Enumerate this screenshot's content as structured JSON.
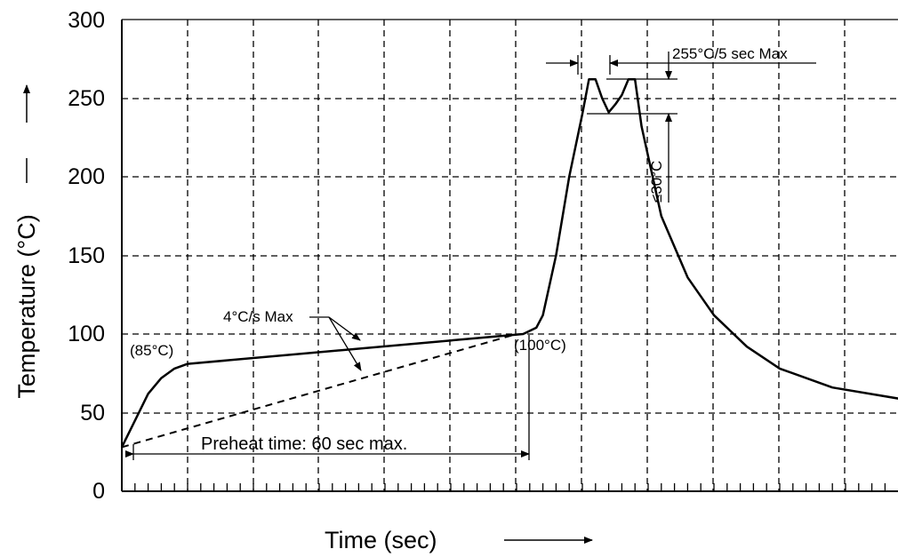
{
  "chart_data": {
    "type": "line",
    "xlabel": "Time (sec)",
    "ylabel": "Temperature (°C)",
    "ylim": [
      0,
      300
    ],
    "y_ticks": [
      "0",
      "50",
      "100",
      "150",
      "200",
      "250",
      "300"
    ],
    "x_tick_labels_shown": false,
    "grid": true,
    "series": [
      {
        "style": "solid",
        "points": [
          [
            0,
            28
          ],
          [
            2,
            45
          ],
          [
            4,
            62
          ],
          [
            6,
            72
          ],
          [
            8,
            78
          ],
          [
            10,
            81
          ],
          [
            61,
            100
          ],
          [
            63,
            104
          ],
          [
            64,
            112
          ],
          [
            66,
            150
          ],
          [
            68,
            200
          ],
          [
            70,
            240
          ],
          [
            71,
            262
          ],
          [
            72,
            262
          ],
          [
            73,
            250
          ],
          [
            74,
            241
          ],
          [
            75,
            246
          ],
          [
            76,
            252
          ],
          [
            77,
            262
          ],
          [
            78,
            262
          ],
          [
            79,
            232
          ],
          [
            82,
            175
          ],
          [
            86,
            136
          ],
          [
            90,
            112
          ],
          [
            95,
            92
          ],
          [
            100,
            78
          ],
          [
            108,
            66
          ],
          [
            118,
            59
          ]
        ]
      },
      {
        "style": "dashed",
        "points": [
          [
            0,
            28
          ],
          [
            60,
            100
          ]
        ]
      }
    ],
    "annotations": {
      "label_85": "(85°C)",
      "label_100": "(100°C)",
      "ramp_rate": "4°C/s Max",
      "peak_hold": "255°C/5 sec Max",
      "peak_delta": "≤30°C",
      "preheat": "Preheat time: 60 sec max."
    }
  }
}
